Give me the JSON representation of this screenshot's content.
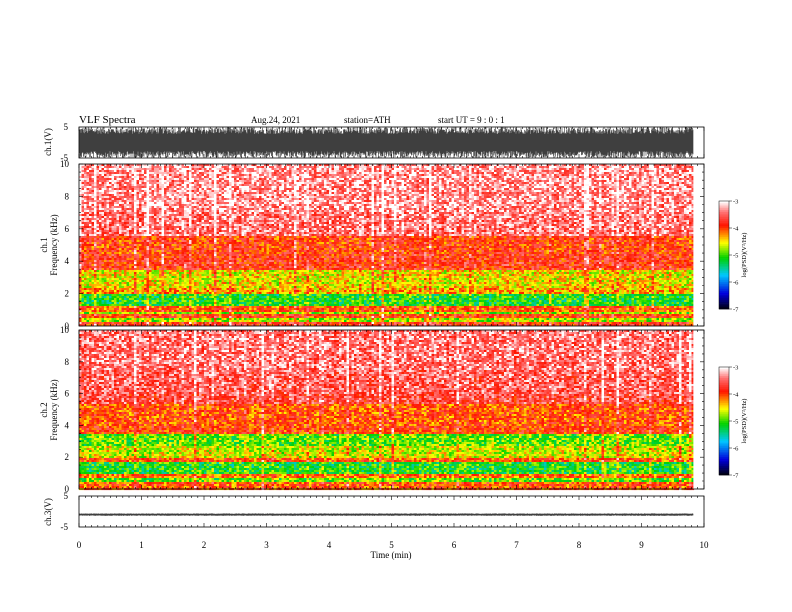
{
  "header": {
    "title": "VLF  Spectra",
    "date": "Aug.24, 2021",
    "station": "station=ATH",
    "start": "start  UT  =   9 : 0  : 1"
  },
  "chart_data": [
    {
      "type": "line",
      "name": "ch1-waveform",
      "ylabel": "ch.1(V)",
      "yticks": [
        "5",
        "-5"
      ],
      "ylim": [
        -5,
        5
      ],
      "xlim": [
        0,
        10
      ],
      "data_end": 9.83,
      "amplitude_fraction": 1.0
    },
    {
      "type": "heatmap",
      "name": "ch1-spectrogram",
      "ylabel_line1": "ch.1",
      "ylabel_line2": "Frequency  (kHz)",
      "yticks": [
        "0",
        "2",
        "4",
        "6",
        "8",
        "10"
      ],
      "ylim": [
        0,
        10
      ],
      "xlim": [
        0,
        10
      ],
      "colorbar": {
        "label": "log(PSD)(V²/Hz)",
        "ticks": [
          "-3",
          "-4",
          "-5",
          "-6",
          "-7"
        ],
        "range": [
          -7,
          -3
        ]
      },
      "bands": [
        {
          "from": 0.0,
          "to": 0.3,
          "level": -3.8
        },
        {
          "from": 0.3,
          "to": 0.5,
          "level": -4.7
        },
        {
          "from": 0.5,
          "to": 0.7,
          "level": -3.9
        },
        {
          "from": 0.7,
          "to": 0.9,
          "level": -4.8
        },
        {
          "from": 0.9,
          "to": 1.2,
          "level": -4.0
        },
        {
          "from": 1.2,
          "to": 2.0,
          "level": -5.1
        },
        {
          "from": 2.0,
          "to": 2.4,
          "level": -4.3
        },
        {
          "from": 2.4,
          "to": 3.5,
          "level": -4.5
        },
        {
          "from": 3.5,
          "to": 4.5,
          "level": -3.8
        },
        {
          "from": 4.5,
          "to": 5.5,
          "level": -3.9
        },
        {
          "from": 5.5,
          "to": 7.0,
          "level": -3.4
        },
        {
          "from": 7.0,
          "to": 10.0,
          "level": -3.3
        }
      ]
    },
    {
      "type": "heatmap",
      "name": "ch2-spectrogram",
      "ylabel_line1": "ch.2",
      "ylabel_line2": "Frequency  (kHz)",
      "yticks": [
        "0",
        "2",
        "4",
        "6",
        "8",
        "10"
      ],
      "ylim": [
        0,
        10
      ],
      "xlim": [
        0,
        10
      ],
      "colorbar": {
        "label": "log(PSD)(V²/Hz)",
        "ticks": [
          "-3",
          "-4",
          "-5",
          "-6",
          "-7"
        ],
        "range": [
          -7,
          -3
        ]
      },
      "bands": [
        {
          "from": 0.0,
          "to": 0.4,
          "level": -4.0
        },
        {
          "from": 0.4,
          "to": 0.7,
          "level": -4.9
        },
        {
          "from": 0.7,
          "to": 1.0,
          "level": -4.1
        },
        {
          "from": 1.0,
          "to": 1.7,
          "level": -5.1
        },
        {
          "from": 1.7,
          "to": 2.0,
          "level": -4.0
        },
        {
          "from": 2.0,
          "to": 2.7,
          "level": -4.6
        },
        {
          "from": 2.7,
          "to": 3.5,
          "level": -4.9
        },
        {
          "from": 3.5,
          "to": 4.0,
          "level": -3.9
        },
        {
          "from": 4.0,
          "to": 5.3,
          "level": -4.0
        },
        {
          "from": 5.3,
          "to": 6.0,
          "level": -3.6
        },
        {
          "from": 6.0,
          "to": 7.5,
          "level": -3.5
        },
        {
          "from": 7.5,
          "to": 10.0,
          "level": -3.4
        }
      ]
    },
    {
      "type": "line",
      "name": "ch3-waveform",
      "ylabel": "ch.3(V)",
      "yticks": [
        "5",
        "-5"
      ],
      "ylim": [
        -5,
        5
      ],
      "xlim": [
        0,
        10
      ],
      "data_end": 9.83,
      "offset": -1.0,
      "amplitude_fraction": 0.08
    }
  ],
  "xaxis": {
    "label": "Time  (min)",
    "ticks": [
      "0",
      "1",
      "2",
      "3",
      "4",
      "5",
      "6",
      "7",
      "8",
      "9",
      "10"
    ]
  }
}
